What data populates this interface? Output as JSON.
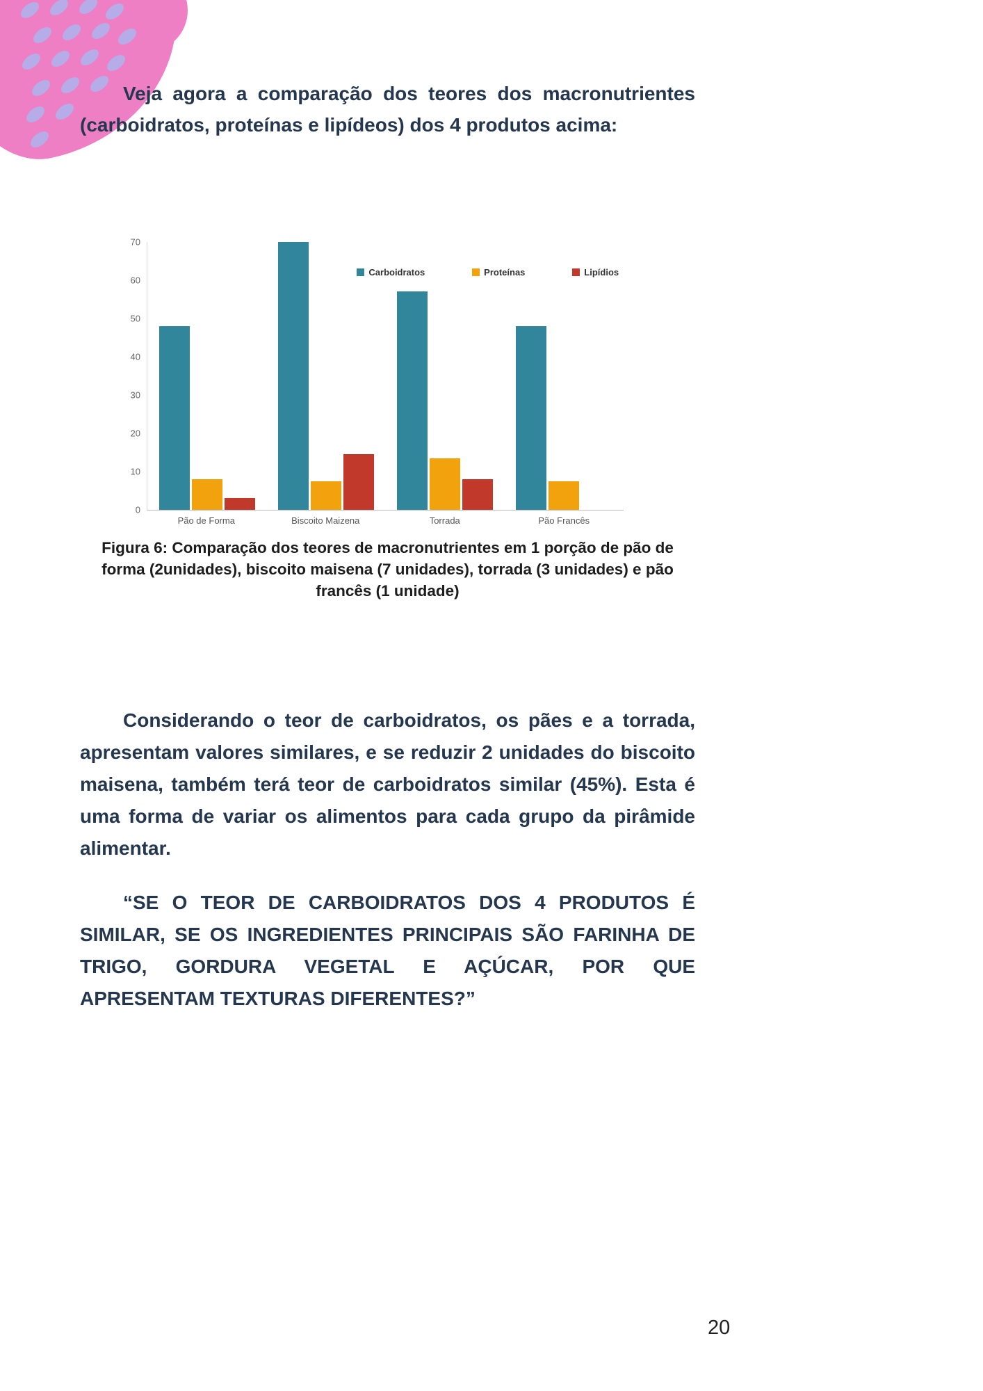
{
  "page": {
    "number": "20"
  },
  "intro": {
    "text": "Veja agora a comparação dos teores dos macronutrientes (carboidratos, proteínas e lipídeos) dos 4 produtos acima:"
  },
  "figure": {
    "caption": "Figura 6: Comparação dos teores de macronutrientes em 1 porção de pão de forma (2unidades), biscoito maisena (7 unidades), torrada (3 unidades) e pão francês (1 unidade)"
  },
  "body": {
    "p1": "Considerando o teor de carboidratos, os pães e a torrada, apresentam valores similares, e se reduzir 2 unidades do biscoito maisena, também terá teor de carboidratos similar (45%). Esta é uma forma de variar os alimentos para cada grupo da pirâmide alimentar.",
    "quote": "“SE O TEOR DE CARBOIDRATOS DOS 4 PRODUTOS É SIMILAR, SE OS INGREDIENTES PRINCIPAIS SÃO FARINHA DE TRIGO, GORDURA VEGETAL E AÇÚCAR, POR QUE APRESENTAM TEXTURAS DIFERENTES?”"
  },
  "colors": {
    "pink": "#ee7fc5",
    "lavender": "#b6ade8",
    "text": "#24374e"
  },
  "chart_data": {
    "type": "bar",
    "title": "",
    "categories": [
      "Pão de Forma",
      "Biscoito Maizena",
      "Torrada",
      "Pão Francês"
    ],
    "series": [
      {
        "name": "Carboidratos",
        "color": "#31869b",
        "values": [
          48,
          70,
          57,
          48
        ]
      },
      {
        "name": "Proteínas",
        "color": "#f2a20c",
        "values": [
          8,
          7.5,
          13.5,
          7.5
        ]
      },
      {
        "name": "Lipídios",
        "color": "#c0392b",
        "values": [
          3,
          14.5,
          8,
          0
        ]
      }
    ],
    "xlabel": "",
    "ylabel": "",
    "ylim": [
      0,
      70
    ],
    "yticks": [
      0,
      10,
      20,
      30,
      40,
      50,
      60,
      70
    ],
    "grid": false,
    "legend_position": "top-right"
  }
}
